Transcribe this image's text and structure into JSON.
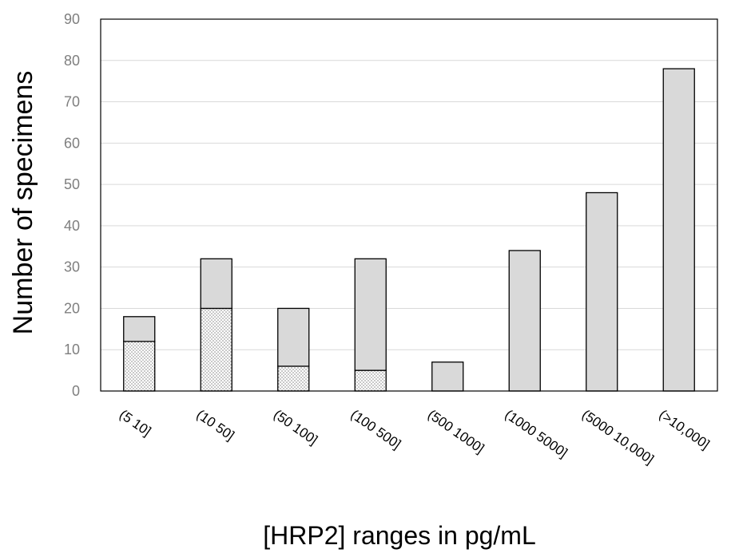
{
  "chart_data": {
    "type": "bar",
    "stacked": true,
    "categories": [
      "(5 10]",
      "(10 50]",
      "(50 100]",
      "(100 500]",
      "(500 1000]",
      "(1000 5000]",
      "(5000 10,000]",
      "(>10,000]"
    ],
    "series": [
      {
        "values": [
          12,
          20,
          6,
          5,
          0,
          0,
          0,
          0
        ],
        "fill": "dotted"
      },
      {
        "values": [
          6,
          12,
          14,
          27,
          7,
          34,
          48,
          78
        ],
        "fill": "#d9d9d9"
      }
    ],
    "totals": [
      18,
      32,
      20,
      32,
      7,
      34,
      48,
      78
    ],
    "xlabel": "[HRP2] ranges in pg/mL",
    "ylabel": "Number of specimens",
    "ylim": [
      0,
      90
    ],
    "yticks": [
      0,
      10,
      20,
      30,
      40,
      50,
      60,
      70,
      80,
      90
    ],
    "grid": true,
    "colors": {
      "bar": "#d9d9d9",
      "dot": "#7f7f7f",
      "grid": "#d9d9d9",
      "ytick": "#7f7f7f"
    }
  }
}
